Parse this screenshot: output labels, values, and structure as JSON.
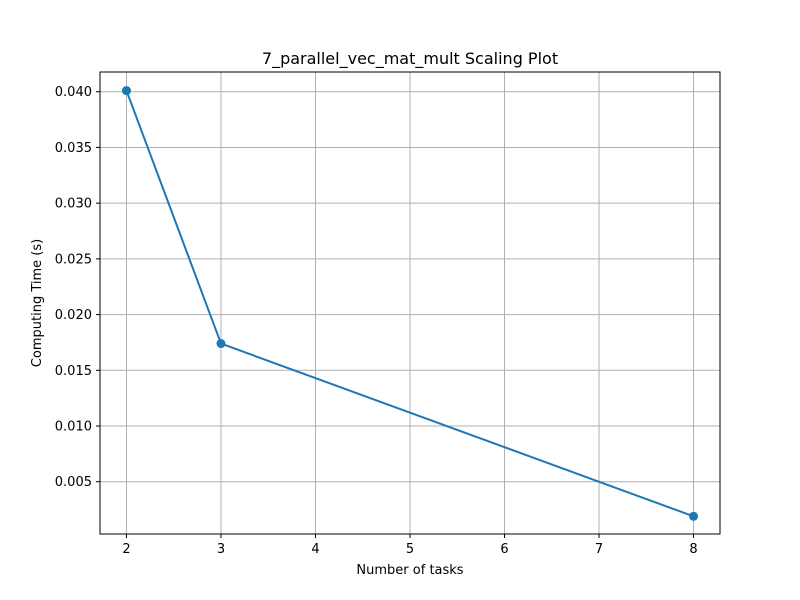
{
  "chart_data": {
    "type": "line",
    "title": "7_parallel_vec_mat_mult Scaling  Plot",
    "xlabel": "Number of tasks",
    "ylabel": "Computing Time (s)",
    "x": [
      2,
      3,
      8
    ],
    "series": [
      {
        "values": [
          0.0401,
          0.0174,
          0.0019
        ],
        "color": "#1f77b4",
        "marker": "circle"
      }
    ],
    "xlim": [
      1.72,
      8.28
    ],
    "ylim": [
      0.00031,
      0.04177
    ],
    "xticks": [
      2,
      3,
      4,
      5,
      6,
      7,
      8
    ],
    "xtick_labels": [
      "2",
      "3",
      "4",
      "5",
      "6",
      "7",
      "8"
    ],
    "yticks": [
      0.005,
      0.01,
      0.015,
      0.02,
      0.025,
      0.03,
      0.035,
      0.04
    ],
    "ytick_labels": [
      "0.005",
      "0.010",
      "0.015",
      "0.020",
      "0.025",
      "0.030",
      "0.035",
      "0.040"
    ],
    "grid": true,
    "grid_color": "#b0b0b0",
    "legend": false
  }
}
